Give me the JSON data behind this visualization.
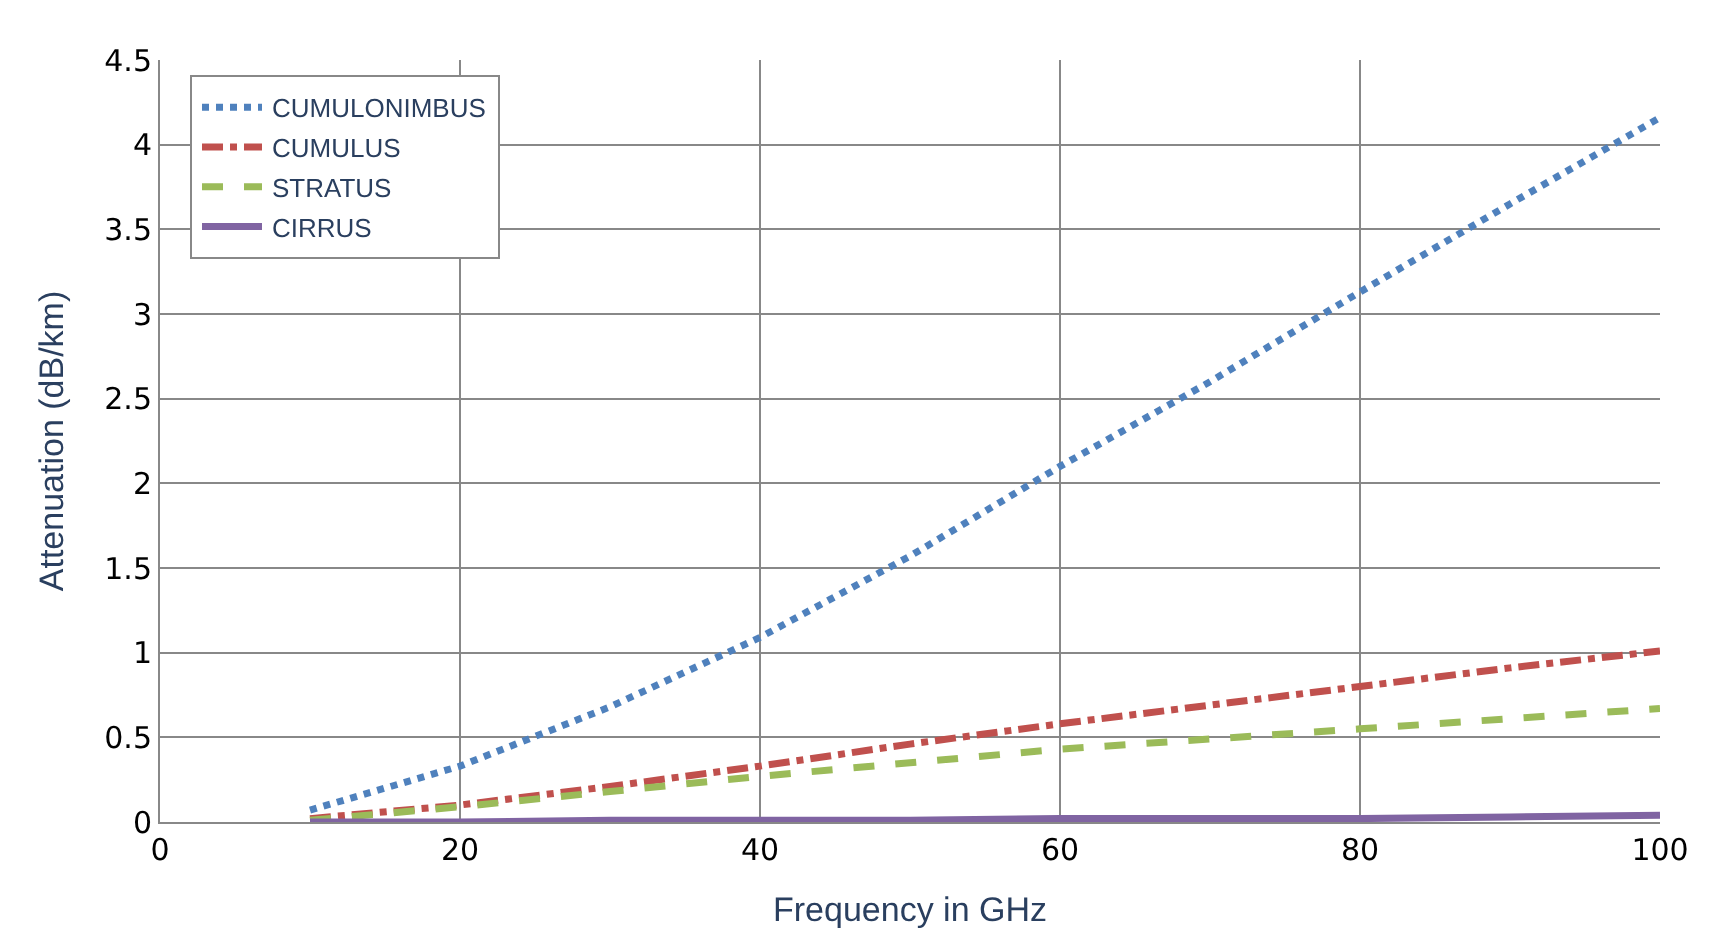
{
  "chart_data": {
    "type": "line",
    "xlabel": "Frequency in GHz",
    "ylabel": "Attenuation (dB/km)",
    "xlim": [
      0,
      100
    ],
    "xticks": [
      0,
      20,
      40,
      60,
      80,
      100
    ],
    "ylim": [
      0,
      4.5
    ],
    "yticks": [
      0,
      0.5,
      1,
      1.5,
      2,
      2.5,
      3,
      3.5,
      4,
      4.5
    ],
    "grid": true,
    "legend": "top left",
    "marker": "none",
    "series": [
      {
        "name": "CUMULONIMBUS",
        "color": "#4f81bd",
        "line_style": "dotted",
        "x": [
          10,
          20,
          30,
          40,
          50,
          60,
          70,
          80,
          90,
          100
        ],
        "values": [
          0.07,
          0.33,
          0.68,
          1.09,
          1.57,
          2.1,
          2.6,
          3.13,
          3.65,
          4.16
        ]
      },
      {
        "name": "CUMULUS",
        "color": "#c0504d",
        "line_style": "dashdot",
        "x": [
          10,
          20,
          30,
          40,
          50,
          60,
          70,
          80,
          90,
          100
        ],
        "values": [
          0.02,
          0.1,
          0.21,
          0.33,
          0.46,
          0.58,
          0.69,
          0.8,
          0.91,
          1.01
        ]
      },
      {
        "name": "STRATUS",
        "color": "#9bbb59",
        "line_style": "dashed",
        "x": [
          10,
          20,
          30,
          40,
          50,
          60,
          70,
          80,
          90,
          100
        ],
        "values": [
          0.01,
          0.09,
          0.18,
          0.27,
          0.35,
          0.43,
          0.49,
          0.55,
          0.61,
          0.67
        ]
      },
      {
        "name": "CIRRUS",
        "color": "#8064a2",
        "line_style": "solid",
        "x": [
          10,
          20,
          30,
          40,
          50,
          60,
          70,
          80,
          90,
          100
        ],
        "values": [
          0.0,
          0.0,
          0.01,
          0.01,
          0.01,
          0.02,
          0.02,
          0.02,
          0.03,
          0.04
        ]
      }
    ]
  }
}
